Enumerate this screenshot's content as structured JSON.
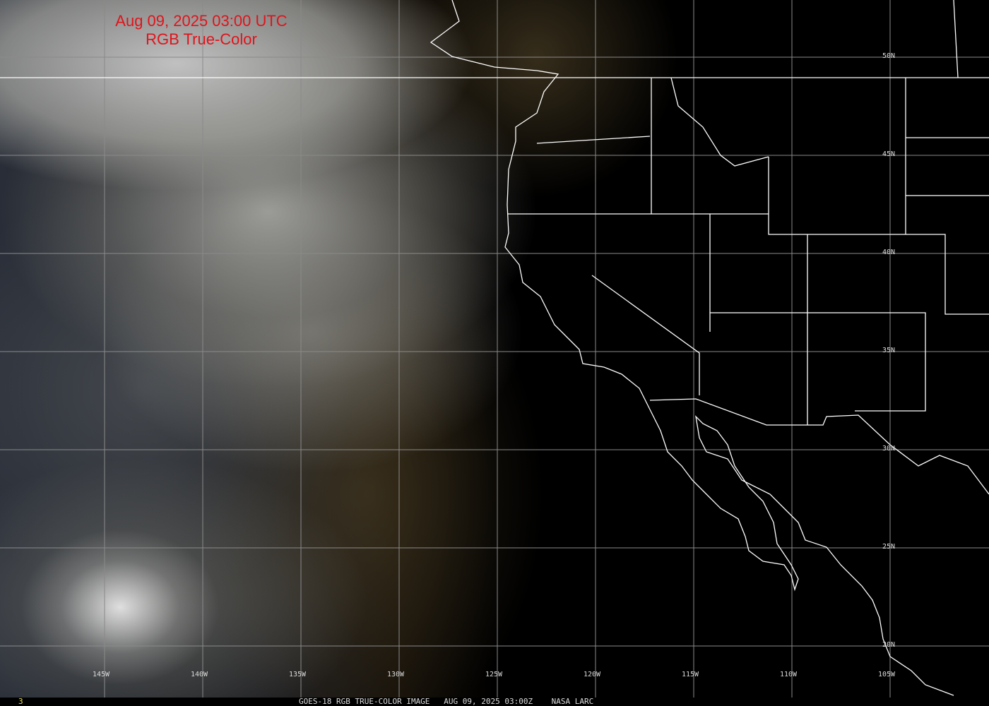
{
  "header": {
    "line1": "Aug 09, 2025 03:00 UTC",
    "line2": "RGB True-Color",
    "color": "#e0141b"
  },
  "grid": {
    "latitudes": [
      "50N",
      "45N",
      "40N",
      "35N",
      "30N",
      "25N",
      "20N"
    ],
    "longitudes": [
      "145W",
      "140W",
      "135W",
      "130W",
      "125W",
      "120W",
      "115W",
      "110W",
      "105W"
    ],
    "color": "#8a8a8a"
  },
  "footer": {
    "frame": "3",
    "caption": "GOES-18 RGB TRUE-COLOR IMAGE   AUG 09, 2025 03:00Z    NASA LARC"
  }
}
